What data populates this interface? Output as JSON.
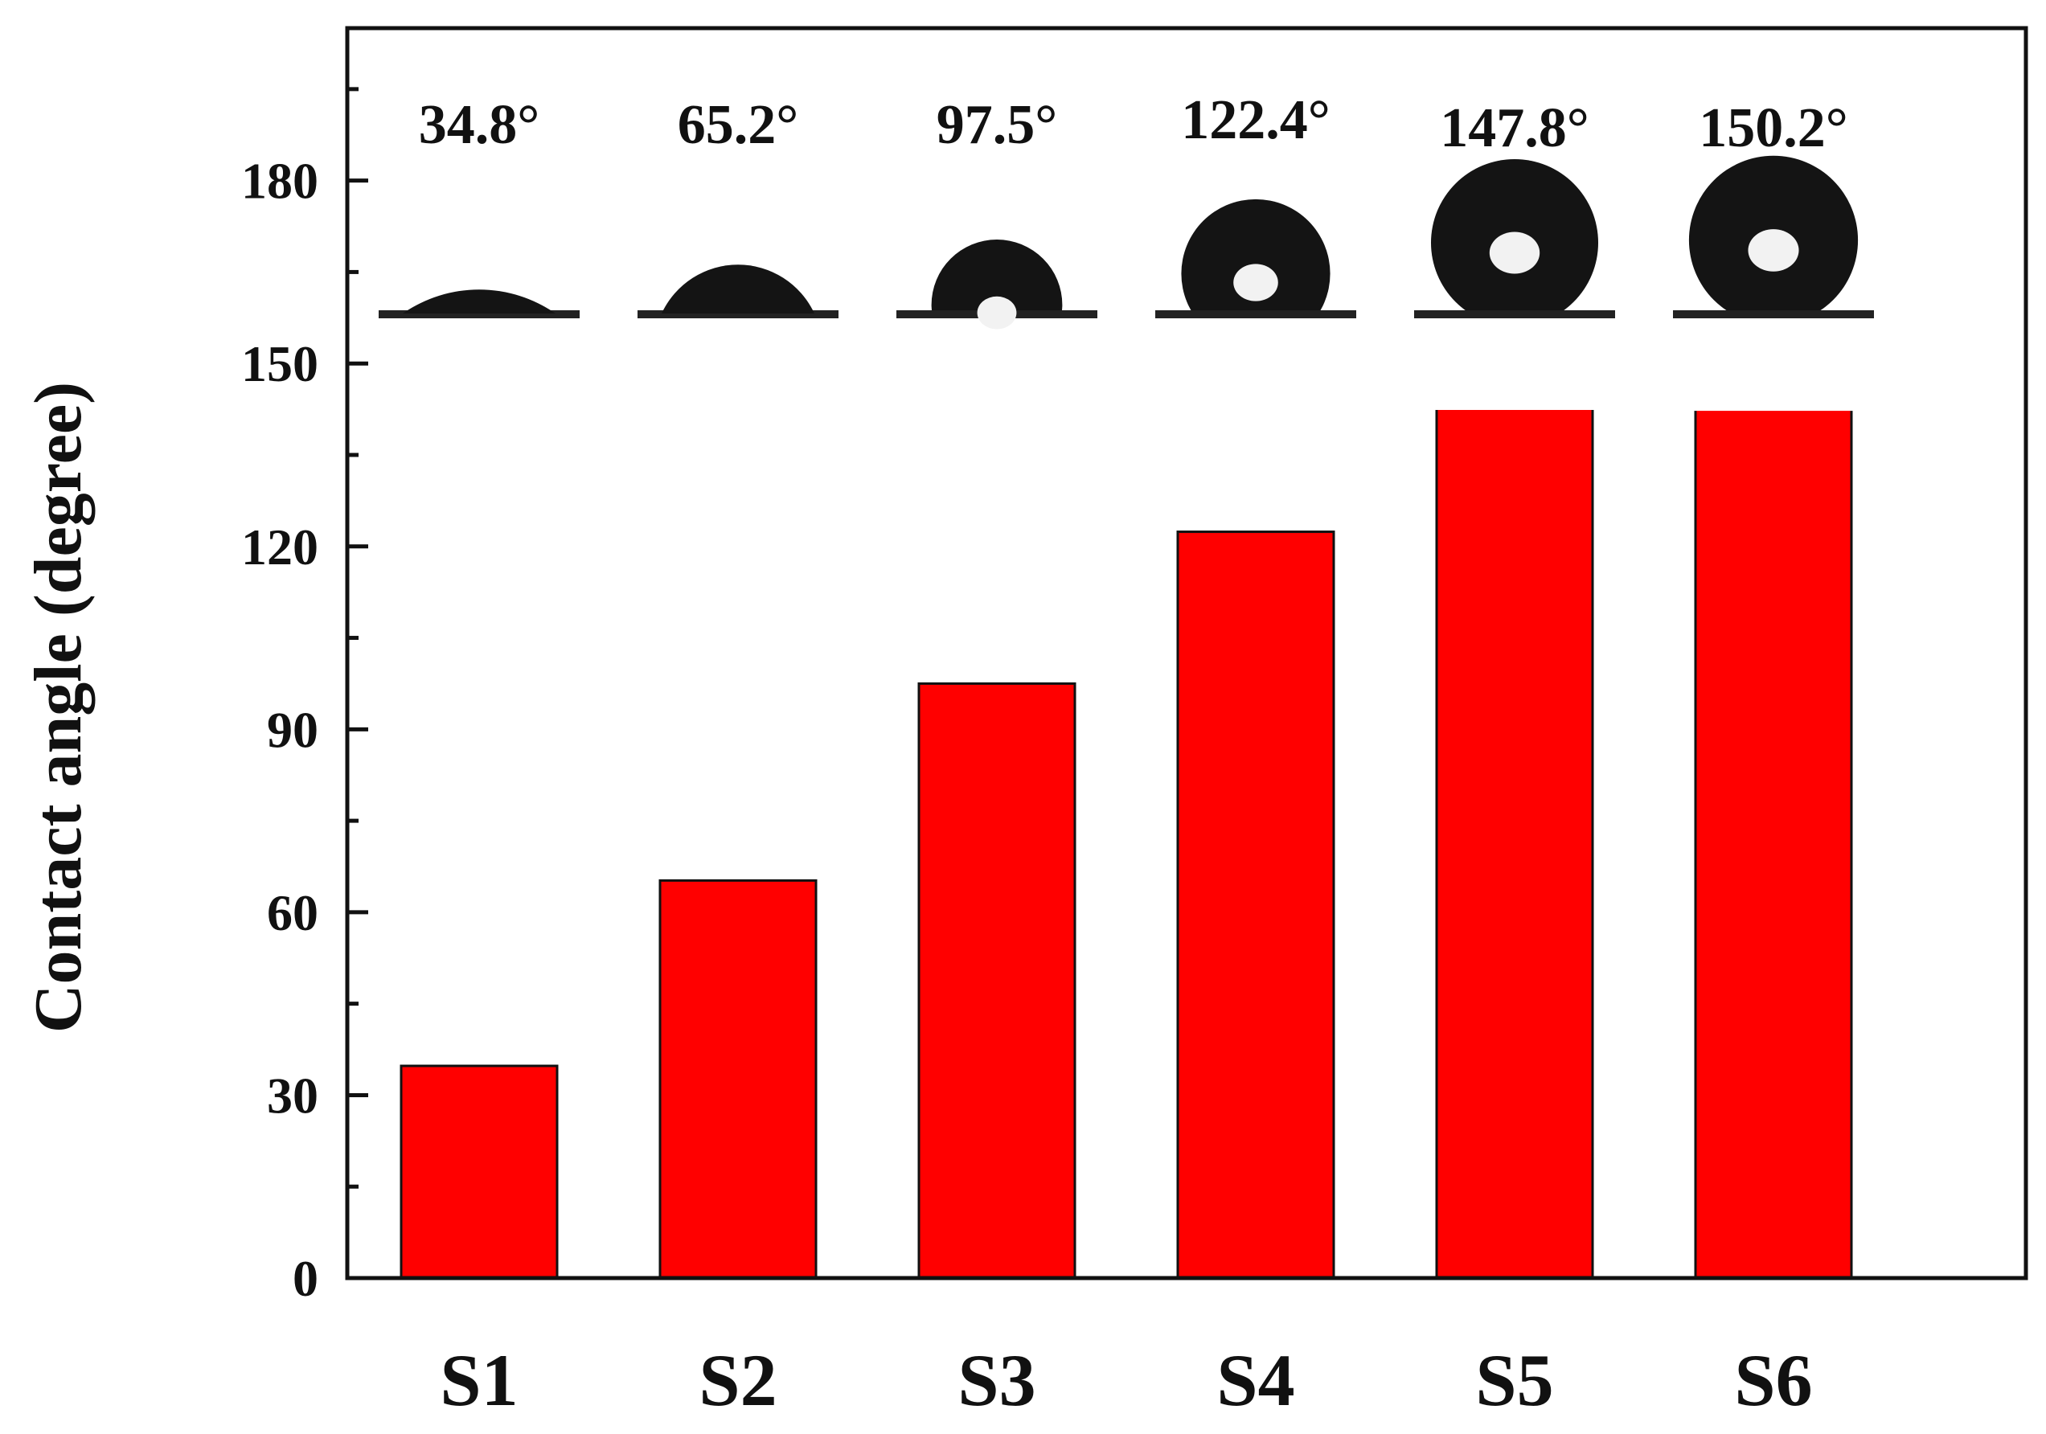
{
  "chart_data": {
    "type": "bar",
    "categories": [
      "S1",
      "S2",
      "S3",
      "S4",
      "S5",
      "S6"
    ],
    "values": [
      34.8,
      65.2,
      97.5,
      122.4,
      147.8,
      150.2
    ],
    "data_labels": [
      "34.8°",
      "65.2°",
      "97.5°",
      "122.4°",
      "147.8°",
      "150.2°"
    ],
    "ylabel": "Contact angle (degree)",
    "xlabel": "",
    "ylim": [
      0,
      205
    ],
    "yticks": [
      0,
      30,
      60,
      90,
      120,
      150,
      180
    ],
    "grid": false,
    "bar_color": "#ff0000",
    "bar_edge_color": "#111111",
    "droplet_insets": true
  }
}
